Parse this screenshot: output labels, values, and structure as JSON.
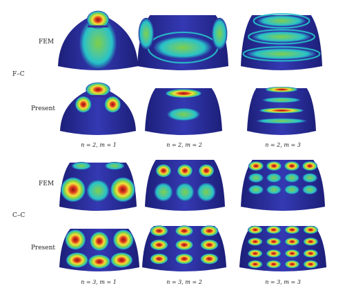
{
  "groups": [
    {
      "label": "F–C",
      "rows": [
        "FEM",
        "Present"
      ],
      "captions": [
        "n = 2, m = 1",
        "n = 2, m = 2",
        "n = 2, m = 3"
      ]
    },
    {
      "label": "C–C",
      "rows": [
        "FEM",
        "Present"
      ],
      "captions": [
        "n = 3, m = 1",
        "n = 3, m = 2",
        "n = 3, m = 3"
      ]
    }
  ],
  "palette": {
    "base": "#2b2f9e",
    "ring1": "#27c2c9",
    "ring2": "#3a7fd9",
    "mid": "#7fcf4a",
    "warm": "#f2e33a",
    "hot": "#e13a1f",
    "core": "#8e1710"
  }
}
